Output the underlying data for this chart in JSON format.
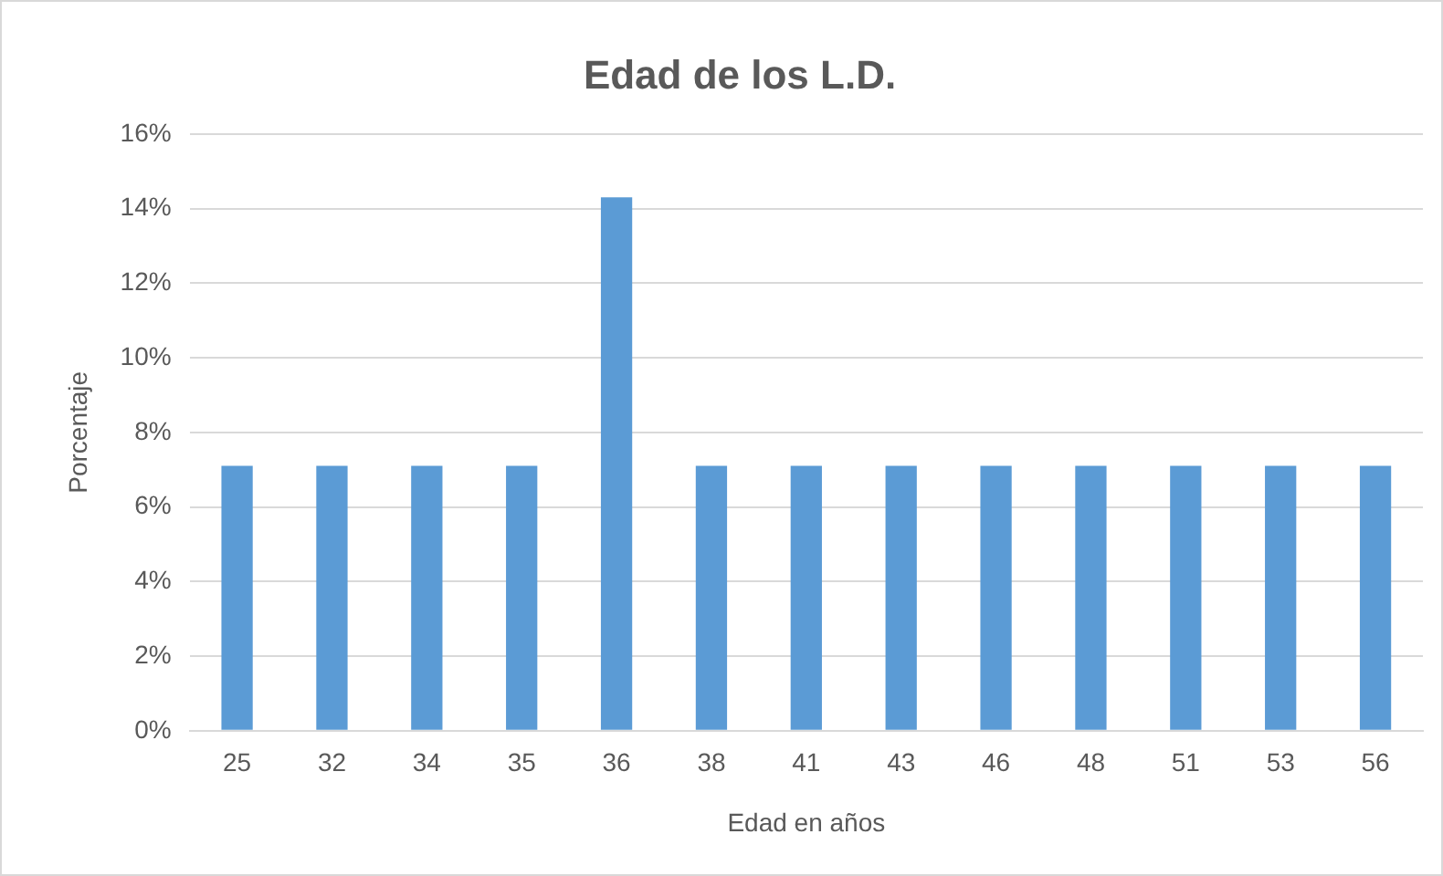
{
  "chart_data": {
    "type": "bar",
    "title": "Edad de los L.D.",
    "xlabel": "Edad en años",
    "ylabel": "Porcentaje",
    "categories": [
      "25",
      "32",
      "34",
      "35",
      "36",
      "38",
      "41",
      "43",
      "46",
      "48",
      "51",
      "53",
      "56"
    ],
    "values": [
      7.1,
      7.1,
      7.1,
      7.1,
      14.3,
      7.1,
      7.1,
      7.1,
      7.1,
      7.1,
      7.1,
      7.1,
      7.1
    ],
    "color": "#5b9bd5",
    "ylim": [
      0,
      16
    ],
    "yticks": [
      {
        "value": 0,
        "label": "0%"
      },
      {
        "value": 2,
        "label": "2%"
      },
      {
        "value": 4,
        "label": "4%"
      },
      {
        "value": 6,
        "label": "6%"
      },
      {
        "value": 8,
        "label": "8%"
      },
      {
        "value": 10,
        "label": "10%"
      },
      {
        "value": 12,
        "label": "12%"
      },
      {
        "value": 14,
        "label": "14%"
      },
      {
        "value": 16,
        "label": "16%"
      }
    ],
    "grid": "y",
    "legend": false
  }
}
